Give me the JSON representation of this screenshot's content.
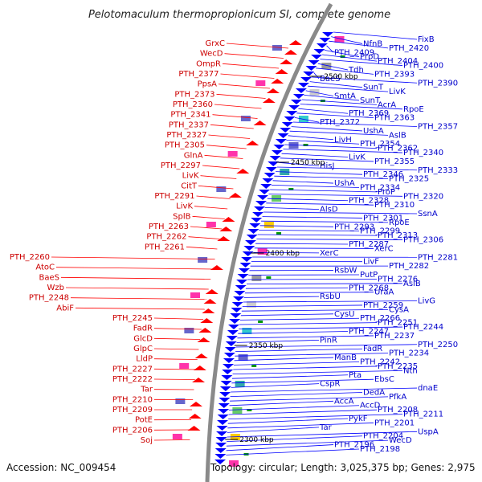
{
  "title": "Pelotomaculum thermopropionicum SI, complete genome",
  "accession": "Accession: NC_009454",
  "topology": "Topology: circular; Length: 3,025,375 bp; Genes: 2,975",
  "colors": {
    "reverse_strand_labels": "#cc0000",
    "forward_strand_labels": "#0000cc",
    "backbone": "#888888",
    "reverse_arrows": "#ff0000",
    "forward_arrows": "#0000ff"
  },
  "kbp_ticks": [
    "2500 kbp",
    "2450 kbp",
    "2400 kbp",
    "2350 kbp",
    "2300 kbp"
  ],
  "left_labels": [
    "GrxC",
    "WecD",
    "OmpR",
    "PTH_2377",
    "PpsA",
    "PTH_2373",
    "PTH_2360",
    "PTH_2341",
    "PTH_2337",
    "PTH_2327",
    "PTH_2305",
    "GlnA",
    "PTH_2297",
    "LivK",
    "CitT",
    "PTH_2291",
    "LivK",
    "SplB",
    "PTH_2263",
    "PTH_2262",
    "PTH_2261",
    "PTH_2260",
    "AtoC",
    "BaeS",
    "Wzb",
    "PTH_2248",
    "AbiF",
    "PTH_2245",
    "FadR",
    "GlcD",
    "GlpC",
    "LldP",
    "PTH_2227",
    "PTH_2222",
    "Tar",
    "PTH_2210",
    "PTH_2209",
    "PotE",
    "PTH_2206",
    "Soj"
  ],
  "right_labels": [
    "FixB",
    "NfnB",
    "PTH_2420",
    "PTH_2409",
    "PrpD",
    "PTH_2404",
    "PTH_2400",
    "Tdh",
    "PTH_2393",
    "BaeS",
    "PTH_2390",
    "SunT",
    "LivK",
    "SmtA",
    "SunT",
    "AcrA",
    "RpoE",
    "PTH_2369",
    "PTH_2363",
    "PTH_2372",
    "PTH_2357",
    "UshA",
    "AslB",
    "LivH",
    "PTH_2354",
    "PTH_2362",
    "PTH_2340",
    "LivK",
    "PTH_2355",
    "HisJ",
    "PTH_2333",
    "PTH_2346",
    "PTH_2325",
    "UshA",
    "PTH_2334",
    "ProP",
    "PTH_2320",
    "PTH_2328",
    "PTH_2310",
    "AlsD",
    "SsnA",
    "PTH_2301",
    "RpoE",
    "PTH_2293",
    "PTH_2299",
    "PTH_2313",
    "PTH_2306",
    "PTH_2287",
    "XerC",
    "XerC",
    "PTH_2281",
    "LivF",
    "PTH_2282",
    "RsbW",
    "PutP",
    "PTH_2276",
    "AslB",
    "PTH_2268",
    "UraA",
    "RsbU",
    "LivG",
    "PTH_2259",
    "CysA",
    "CysU",
    "PTH_2266",
    "PTH_2251",
    "PTH_2244",
    "PTH_2247",
    "PTH_2237",
    "PinR",
    "PTH_2250",
    "FadR",
    "PTH_2234",
    "ManB",
    "PTH_2242",
    "PTH_2235",
    "Nth",
    "Pta",
    "EbsC",
    "CspR",
    "dnaE",
    "DedA",
    "PfkA",
    "AccA",
    "AccD",
    "PTH_2208",
    "PTH_2211",
    "PykF",
    "PTH_2201",
    "Tar",
    "UspA",
    "PTH_2204",
    "WecD",
    "PTH_2196",
    "PTH_2198"
  ]
}
